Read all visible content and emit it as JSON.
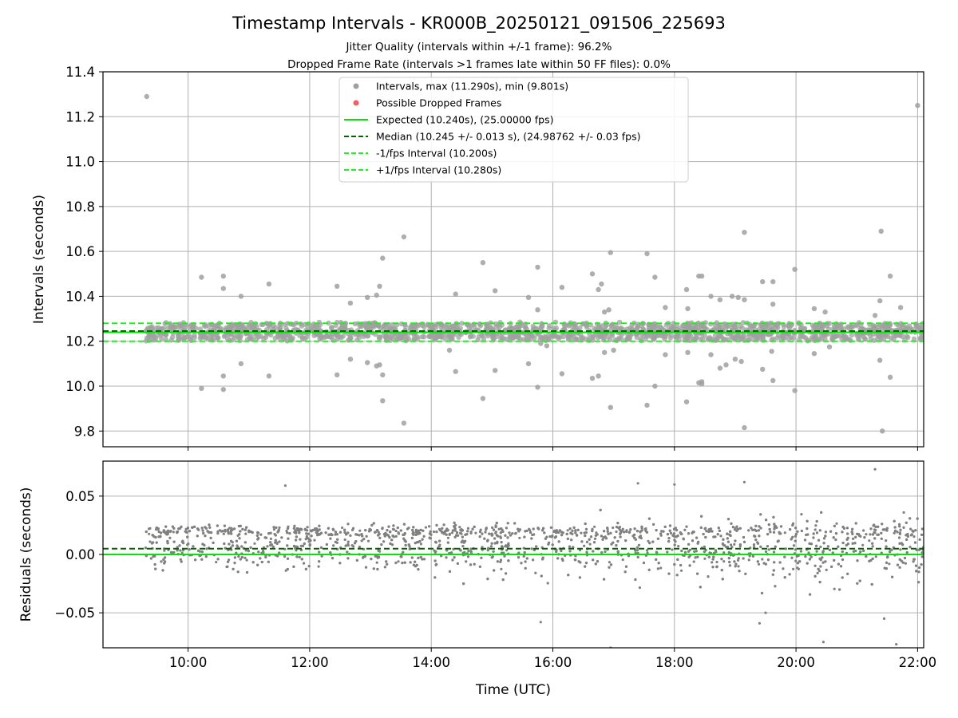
{
  "chart_data": [
    {
      "type": "scatter",
      "title": "Timestamp Intervals - KR000B_20250121_091506_225693",
      "subtitle_lines": [
        "Jitter Quality (intervals within +/-1 frame): 96.2%",
        "Dropped Frame Rate (intervals >1 frames late within 50 FF files): 0.0%"
      ],
      "ylabel": "Intervals (seconds)",
      "xlim_hours": [
        8.6,
        22.1
      ],
      "ylim": [
        9.73,
        11.4
      ],
      "yticks": [
        9.8,
        10.0,
        10.2,
        10.4,
        10.6,
        10.8,
        11.0,
        11.2,
        11.4
      ],
      "ytick_labels": [
        "9.8",
        "10.0",
        "10.2",
        "10.4",
        "10.6",
        "10.8",
        "11.0",
        "11.2",
        "11.4"
      ],
      "grid": true,
      "legend_position": "upper center",
      "legend": [
        {
          "kind": "dot",
          "color": "#a0a0a0",
          "label": "Intervals, max (11.290s), min (9.801s)"
        },
        {
          "kind": "dot",
          "color": "#f06060",
          "label": "Possible Dropped Frames"
        },
        {
          "kind": "line",
          "color": "#00e600",
          "dash": "solid",
          "label": "Expected (10.240s), (25.00000 fps)"
        },
        {
          "kind": "line",
          "color": "#006400",
          "dash": "dashed",
          "label": "Median (10.245 +/- 0.013 s), (24.98762 +/- 0.03 fps)"
        },
        {
          "kind": "line",
          "color": "#22ee22",
          "dash": "dashed",
          "label": "-1/fps Interval (10.200s)"
        },
        {
          "kind": "line",
          "color": "#22ee22",
          "dash": "dashed",
          "label": "+1/fps Interval (10.280s)"
        }
      ],
      "reference_lines": {
        "expected": 10.24,
        "median": 10.245,
        "minus_1fps": 10.2,
        "plus_1fps": 10.28
      },
      "series_time_range_hours": [
        9.3,
        22.1
      ],
      "series_core_band": [
        10.205,
        10.29
      ],
      "outliers": [
        [
          9.32,
          11.29
        ],
        [
          22.0,
          11.25
        ],
        [
          10.22,
          10.485
        ],
        [
          10.58,
          10.49
        ],
        [
          10.58,
          10.435
        ],
        [
          10.87,
          10.4
        ],
        [
          11.33,
          10.455
        ],
        [
          12.45,
          10.445
        ],
        [
          12.67,
          10.37
        ],
        [
          12.95,
          10.395
        ],
        [
          13.1,
          10.405
        ],
        [
          13.15,
          10.445
        ],
        [
          13.2,
          10.57
        ],
        [
          13.55,
          10.665
        ],
        [
          14.4,
          10.41
        ],
        [
          14.85,
          10.55
        ],
        [
          15.05,
          10.425
        ],
        [
          15.6,
          10.395
        ],
        [
          15.75,
          10.53
        ],
        [
          15.75,
          10.34
        ],
        [
          16.15,
          10.44
        ],
        [
          16.65,
          10.5
        ],
        [
          16.75,
          10.43
        ],
        [
          16.85,
          10.33
        ],
        [
          16.92,
          10.34
        ],
        [
          16.95,
          10.595
        ],
        [
          16.8,
          10.455
        ],
        [
          17.55,
          10.59
        ],
        [
          17.68,
          10.485
        ],
        [
          17.85,
          10.35
        ],
        [
          18.2,
          10.43
        ],
        [
          18.22,
          10.345
        ],
        [
          18.4,
          10.49
        ],
        [
          18.45,
          10.49
        ],
        [
          18.6,
          10.4
        ],
        [
          18.75,
          10.385
        ],
        [
          18.95,
          10.4
        ],
        [
          19.05,
          10.395
        ],
        [
          19.15,
          10.685
        ],
        [
          19.15,
          10.385
        ],
        [
          19.45,
          10.465
        ],
        [
          19.62,
          10.465
        ],
        [
          19.62,
          10.365
        ],
        [
          19.98,
          10.52
        ],
        [
          20.3,
          10.345
        ],
        [
          20.48,
          10.33
        ],
        [
          21.4,
          10.69
        ],
        [
          21.38,
          10.38
        ],
        [
          21.55,
          10.49
        ],
        [
          21.72,
          10.35
        ],
        [
          21.3,
          10.315
        ],
        [
          20.55,
          10.175
        ],
        [
          20.3,
          10.145
        ],
        [
          10.22,
          9.99
        ],
        [
          10.58,
          10.045
        ],
        [
          10.58,
          9.985
        ],
        [
          10.87,
          10.1
        ],
        [
          11.33,
          10.045
        ],
        [
          12.45,
          10.05
        ],
        [
          12.67,
          10.12
        ],
        [
          12.95,
          10.105
        ],
        [
          13.1,
          10.09
        ],
        [
          13.15,
          10.095
        ],
        [
          13.2,
          10.05
        ],
        [
          13.2,
          9.935
        ],
        [
          13.55,
          9.835
        ],
        [
          14.4,
          10.065
        ],
        [
          14.85,
          9.945
        ],
        [
          15.05,
          10.07
        ],
        [
          15.6,
          10.1
        ],
        [
          15.75,
          9.995
        ],
        [
          15.8,
          10.19
        ],
        [
          15.9,
          10.18
        ],
        [
          16.15,
          10.055
        ],
        [
          16.65,
          10.035
        ],
        [
          16.75,
          10.045
        ],
        [
          16.85,
          10.15
        ],
        [
          16.95,
          9.905
        ],
        [
          17.55,
          9.915
        ],
        [
          17.68,
          10.0
        ],
        [
          17.85,
          10.14
        ],
        [
          18.2,
          9.93
        ],
        [
          18.22,
          10.15
        ],
        [
          18.4,
          10.015
        ],
        [
          18.45,
          10.01
        ],
        [
          18.45,
          10.02
        ],
        [
          18.6,
          10.14
        ],
        [
          18.75,
          10.08
        ],
        [
          18.85,
          10.095
        ],
        [
          19.0,
          10.12
        ],
        [
          19.1,
          10.11
        ],
        [
          19.15,
          9.815
        ],
        [
          19.45,
          10.075
        ],
        [
          19.62,
          10.025
        ],
        [
          19.98,
          9.98
        ],
        [
          21.38,
          10.115
        ],
        [
          21.42,
          9.8
        ],
        [
          21.55,
          10.04
        ],
        [
          19.6,
          10.155
        ],
        [
          17.0,
          10.16
        ],
        [
          14.3,
          10.16
        ]
      ]
    },
    {
      "type": "scatter",
      "xlabel": "Time (UTC)",
      "ylabel": "Residuals (seconds)",
      "xlim_hours": [
        8.6,
        22.1
      ],
      "ylim": [
        -0.08,
        0.08
      ],
      "yticks": [
        -0.05,
        0.0,
        0.05
      ],
      "ytick_labels": [
        "−0.05",
        "0.00",
        "0.05"
      ],
      "xticks_hours": [
        10,
        12,
        14,
        16,
        18,
        20,
        22
      ],
      "xtick_labels": [
        "10:00",
        "12:00",
        "14:00",
        "16:00",
        "18:00",
        "20:00",
        "22:00"
      ],
      "grid": true,
      "reference_lines": {
        "expected": 0.0,
        "median": 0.005
      },
      "series_time_range_hours": [
        9.3,
        22.1
      ],
      "series_spread": 0.02,
      "series_outliers": [
        [
          21.3,
          0.073
        ],
        [
          20.45,
          -0.075
        ],
        [
          21.65,
          -0.077
        ],
        [
          16.95,
          -0.08
        ],
        [
          19.15,
          0.062
        ],
        [
          17.4,
          0.061
        ],
        [
          15.8,
          -0.058
        ],
        [
          19.5,
          -0.05
        ],
        [
          11.6,
          0.059
        ],
        [
          18.0,
          0.06
        ],
        [
          21.45,
          -0.055
        ],
        [
          19.4,
          -0.059
        ]
      ]
    }
  ],
  "colors": {
    "points": "#808080",
    "points_top": "#a0a0a0",
    "expected": "#00e600",
    "median": "#006400",
    "bounds": "#22ee22",
    "grid": "#b0b0b0"
  }
}
